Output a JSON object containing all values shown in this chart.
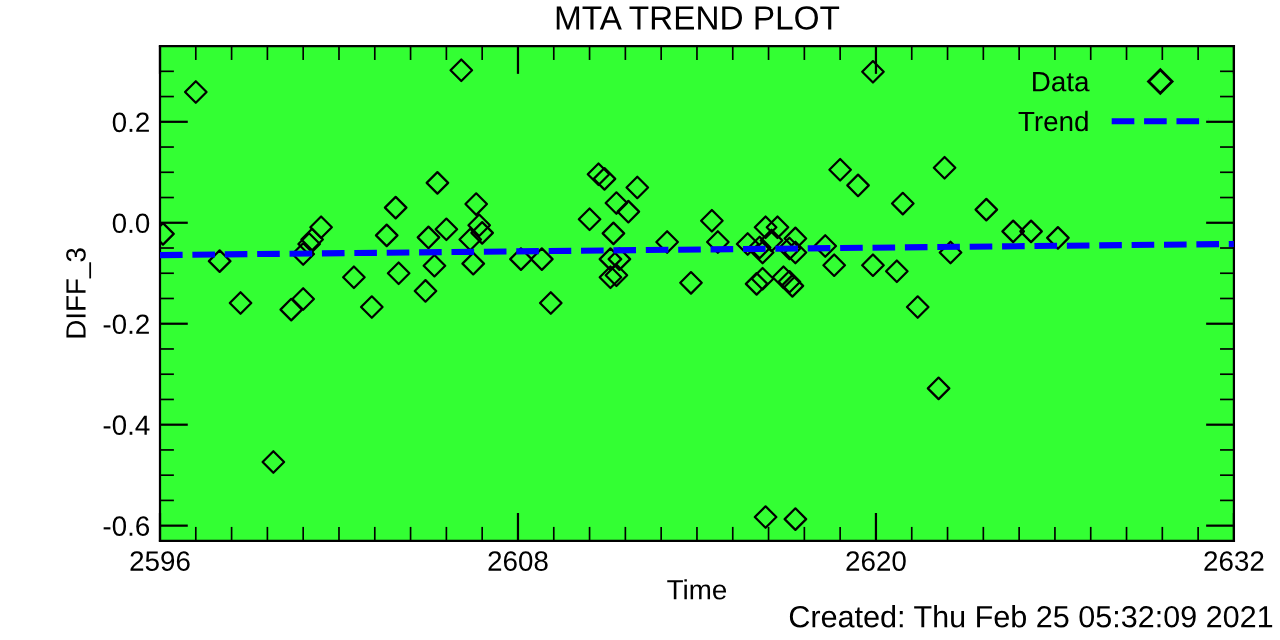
{
  "chart_data": {
    "type": "scatter",
    "title": "MTA TREND PLOT",
    "xlabel": "Time",
    "ylabel": "DIFF_3",
    "xlim": [
      2596,
      2632
    ],
    "xticks": [
      2596,
      2608,
      2620,
      2632
    ],
    "ylim": [
      -0.63,
      0.35
    ],
    "yticks": [
      -0.6,
      -0.4,
      -0.2,
      {
        "value": 0,
        "label": "0.0"
      },
      0.2
    ],
    "grid": false,
    "legend": "top right",
    "annotations": [
      "Created: Thu Feb 25 05:32:09 2021"
    ],
    "series": [
      {
        "name": "Data",
        "marker": "diamond",
        "color": "#000000",
        "x": [
          2596.1,
          2597.2,
          2598.0,
          2598.7,
          2599.8,
          2600.4,
          2600.8,
          2600.8,
          2601.0,
          2601.1,
          2601.4,
          2602.5,
          2603.1,
          2603.6,
          2603.9,
          2604.0,
          2604.9,
          2605.0,
          2605.2,
          2605.3,
          2605.6,
          2606.1,
          2606.4,
          2606.5,
          2606.6,
          2606.7,
          2606.8,
          2608.1,
          2608.8,
          2609.1,
          2610.4,
          2610.7,
          2610.9,
          2611.2,
          2611.1,
          2611.4,
          2611.1,
          2611.3,
          2611.3,
          2611.7,
          2612.0,
          2613.0,
          2613.8,
          2614.5,
          2614.7,
          2615.7,
          2616.1,
          2616.2,
          2616.3,
          2616.7,
          2616.5,
          2616.2,
          2616.0,
          2617.1,
          2617.3,
          2617.3,
          2616.9,
          2617.1,
          2617.2,
          2616.3,
          2617.3,
          2618.3,
          2618.6,
          2618.8,
          2619.4,
          2619.9,
          2619.9,
          2620.9,
          2620.7,
          2621.4,
          2622.3,
          2622.1,
          2622.5,
          2623.7,
          2624.6,
          2625.2,
          2626.1
        ],
        "values": [
          -0.022,
          0.259,
          -0.076,
          -0.159,
          -0.474,
          -0.172,
          -0.151,
          -0.062,
          -0.042,
          -0.033,
          -0.009,
          -0.108,
          -0.167,
          -0.025,
          0.03,
          -0.1,
          -0.135,
          -0.029,
          -0.085,
          0.079,
          -0.013,
          0.302,
          -0.033,
          -0.081,
          0.037,
          -0.005,
          -0.02,
          -0.072,
          -0.072,
          -0.159,
          0.007,
          0.096,
          0.087,
          -0.021,
          -0.072,
          -0.072,
          -0.108,
          -0.104,
          0.039,
          0.022,
          0.07,
          -0.038,
          -0.119,
          0.004,
          -0.038,
          -0.042,
          -0.049,
          -0.059,
          -0.009,
          -0.009,
          -0.035,
          -0.111,
          -0.121,
          -0.051,
          -0.059,
          -0.031,
          -0.108,
          -0.117,
          -0.125,
          -0.583,
          -0.587,
          -0.046,
          -0.084,
          0.105,
          0.074,
          -0.084,
          0.299,
          0.038,
          -0.096,
          -0.167,
          0.109,
          -0.328,
          -0.059,
          0.026,
          -0.017,
          -0.017,
          -0.03
        ]
      },
      {
        "name": "Trend",
        "type": "line",
        "line_style": "dashed",
        "color": "#0000ff",
        "x": [
          2596,
          2632
        ],
        "values": [
          -0.064,
          -0.042
        ]
      }
    ]
  }
}
